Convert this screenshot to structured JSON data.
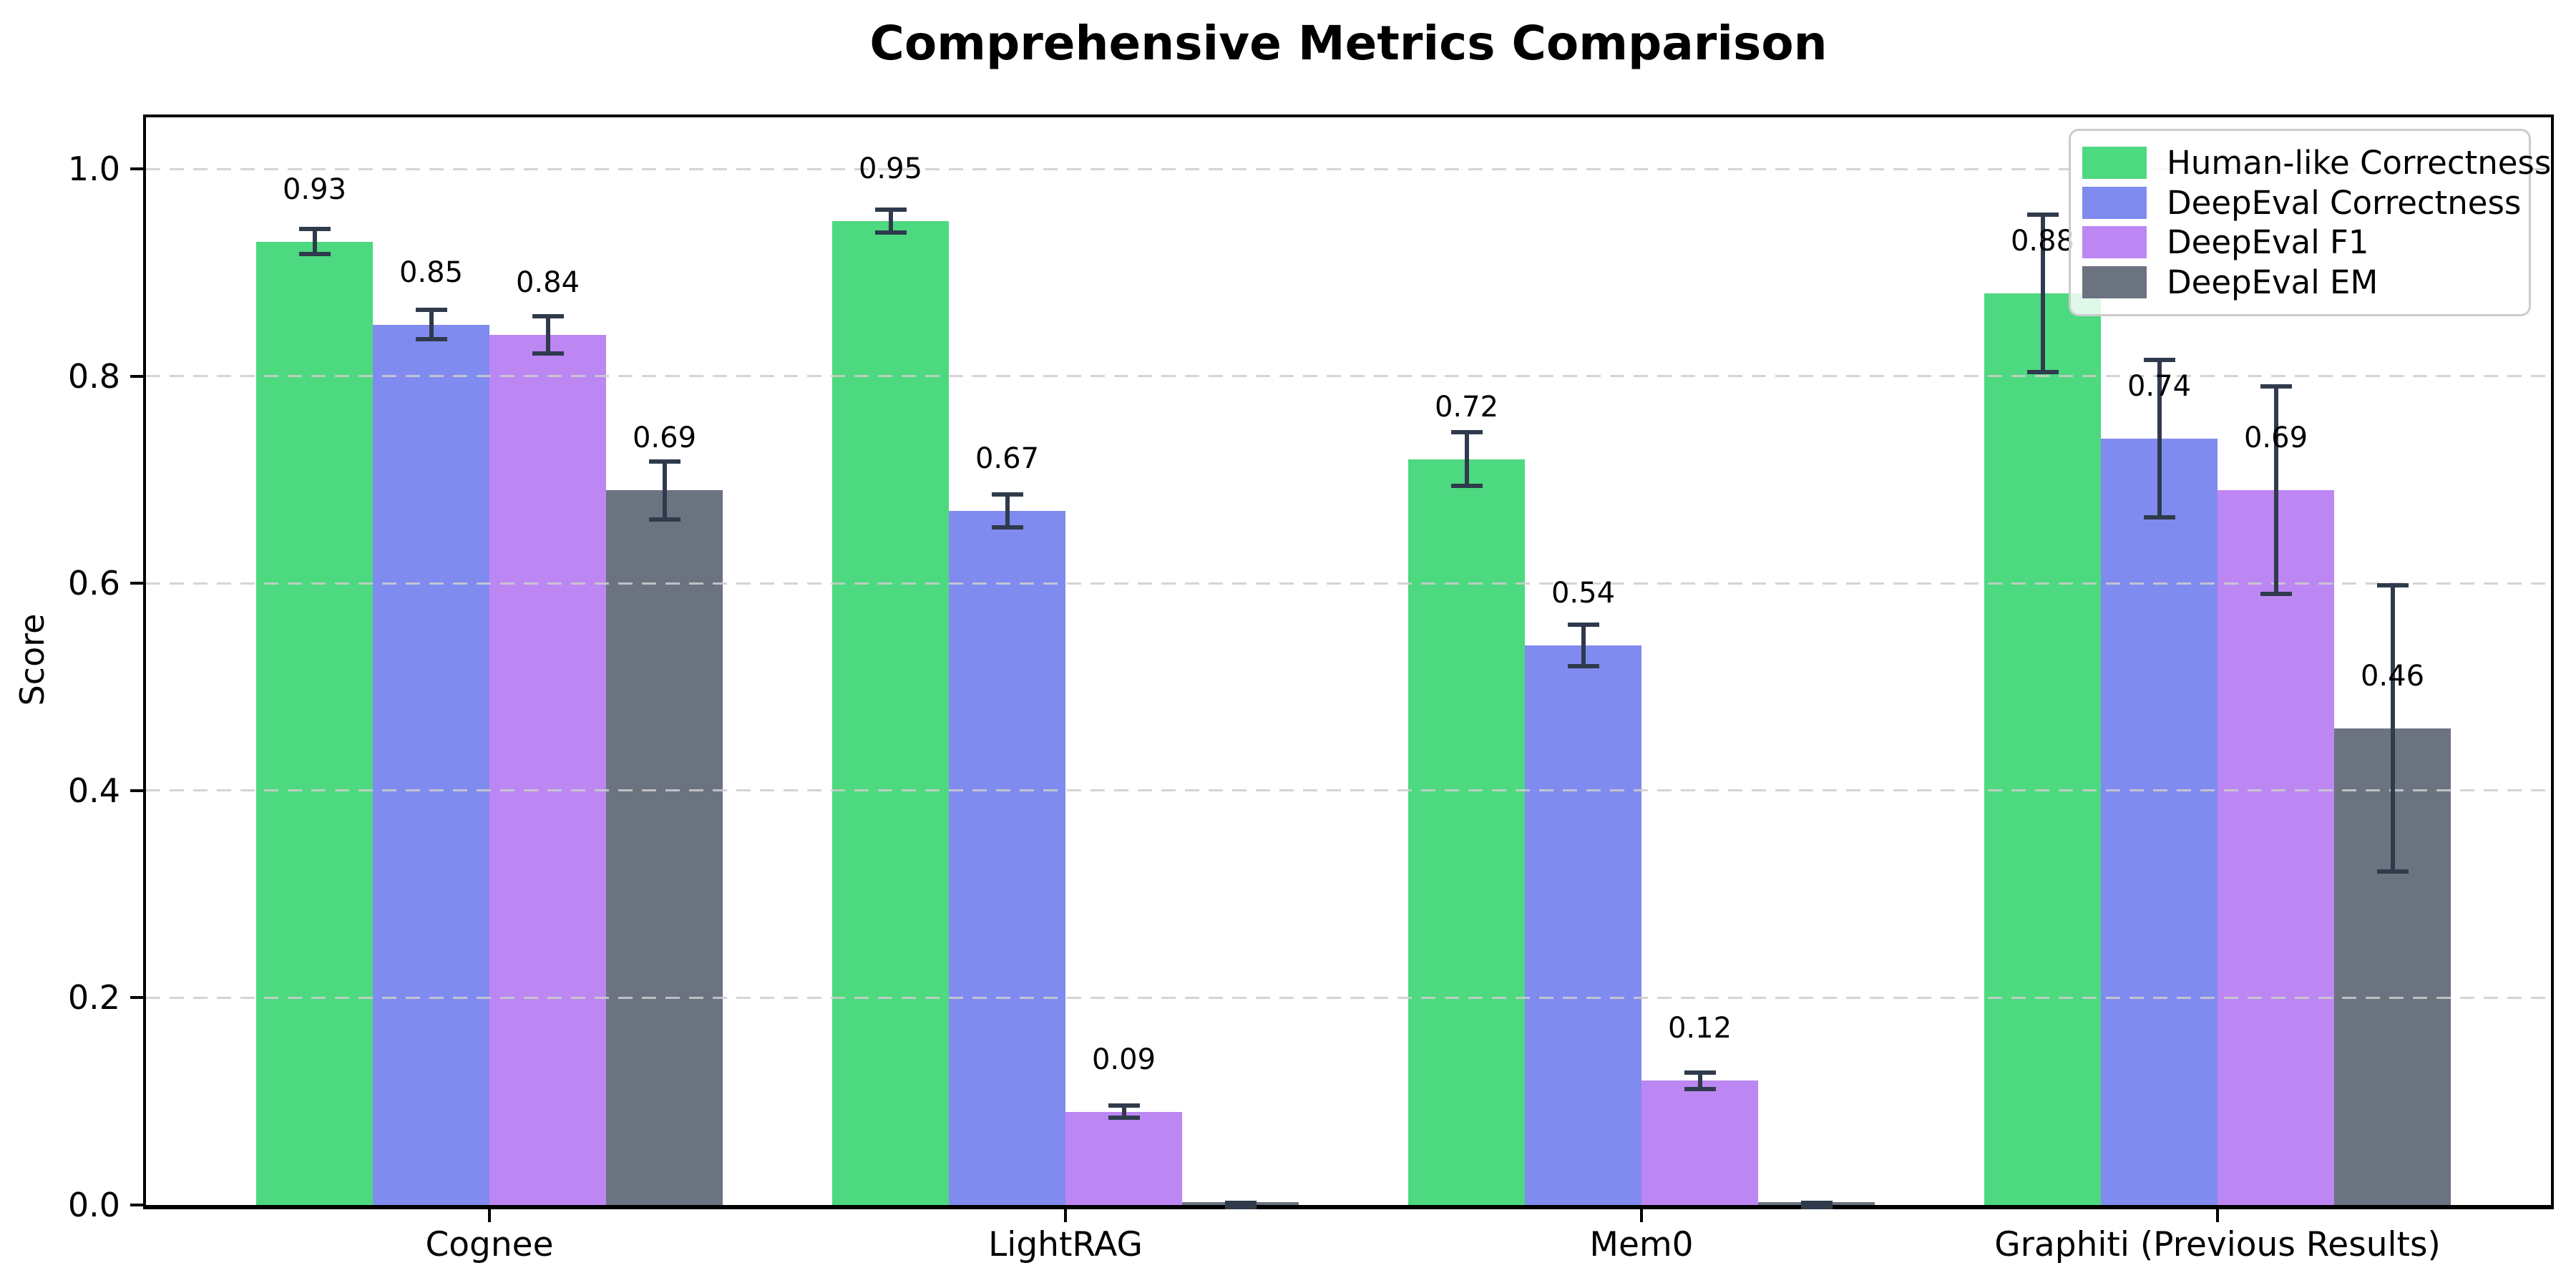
{
  "title": "Comprehensive Metrics Comparison",
  "ylabel": "Score",
  "chart_data": {
    "type": "bar",
    "categories": [
      "Cognee",
      "LightRAG",
      "Mem0",
      "Graphiti (Previous Results)"
    ],
    "series": [
      {
        "name": "Human-like Correctness",
        "color": "#4DD97F",
        "values": [
          0.93,
          0.95,
          0.72,
          0.88
        ],
        "errors": [
          0.014,
          0.013,
          0.028,
          0.078
        ],
        "labels": [
          "0.93",
          "0.95",
          "0.72",
          "0.88"
        ]
      },
      {
        "name": "DeepEval Correctness",
        "color": "#808BF0",
        "values": [
          0.85,
          0.67,
          0.54,
          0.74
        ],
        "errors": [
          0.016,
          0.018,
          0.022,
          0.078
        ],
        "labels": [
          "0.85",
          "0.67",
          "0.54",
          "0.74"
        ]
      },
      {
        "name": "DeepEval F1",
        "color": "#BC87F2",
        "values": [
          0.84,
          0.09,
          0.12,
          0.69
        ],
        "errors": [
          0.02,
          0.008,
          0.01,
          0.102
        ],
        "labels": [
          "0.84",
          "0.09",
          "0.12",
          "0.69"
        ]
      },
      {
        "name": "DeepEval EM",
        "color": "#6C7380",
        "values": [
          0.69,
          0.0,
          0.0,
          0.46
        ],
        "errors": [
          0.03,
          0.004,
          0.004,
          0.14
        ],
        "labels": [
          "0.69",
          "",
          "",
          "0.46"
        ]
      }
    ],
    "yticks": [
      "0.0",
      "0.2",
      "0.4",
      "0.6",
      "0.8",
      "1.0"
    ],
    "ylim": [
      0,
      1.05
    ],
    "grid": "horizontal-dashed",
    "legend_position": "upper-right",
    "error_bar_color": "#2F3B4C"
  }
}
